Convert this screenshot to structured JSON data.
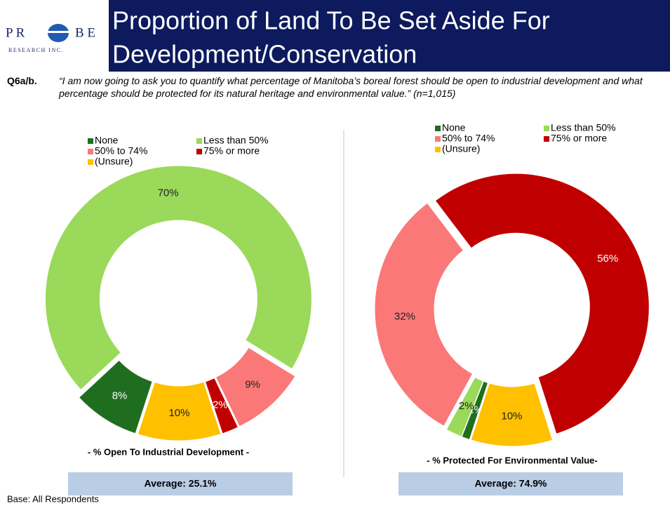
{
  "header": {
    "logo_left": "P R",
    "logo_right": "B E",
    "logo_sub": "RESEARCH INC.",
    "title": "Proportion of Land To Be Set Aside For Development/Conservation"
  },
  "question": {
    "label": "Q6a/b.",
    "text": "“I am now going to ask you to quantify what percentage of Manitoba’s boreal forest should be open to industrial development and what percentage should be protected for its natural heritage and environmental value.”",
    "n": "(n=1,015)"
  },
  "chart_data": [
    {
      "type": "donut",
      "subtitle": "- % Open To Industrial Development -",
      "annotation": "Average: 25.1%",
      "categories": [
        "None",
        "Less than 50%",
        "50% to 74%",
        "75% or more",
        "(Unsure)"
      ],
      "values": [
        8,
        70,
        9,
        2,
        10
      ],
      "value_labels": [
        "8%",
        "70%",
        "9%",
        "2%",
        "10%"
      ],
      "colors": [
        "#1f6e1f",
        "#9ad95a",
        "#fa7878",
        "#c00000",
        "#ffc000"
      ],
      "legend": "top"
    },
    {
      "type": "donut",
      "subtitle": "- % Protected For Environmental Value-",
      "annotation": "Average: 74.9%",
      "categories": [
        "None",
        "Less than 50%",
        "50% to 74%",
        "75% or more",
        "(Unsure)"
      ],
      "values": [
        1,
        2,
        32,
        56,
        10
      ],
      "value_labels": [
        "1%",
        "2%",
        "32%",
        "56%",
        "10%"
      ],
      "colors": [
        "#1f6e1f",
        "#9ad95a",
        "#fa7878",
        "#c00000",
        "#ffc000"
      ],
      "legend": "top"
    }
  ],
  "footer": {
    "base": "Base: All Respondents"
  }
}
